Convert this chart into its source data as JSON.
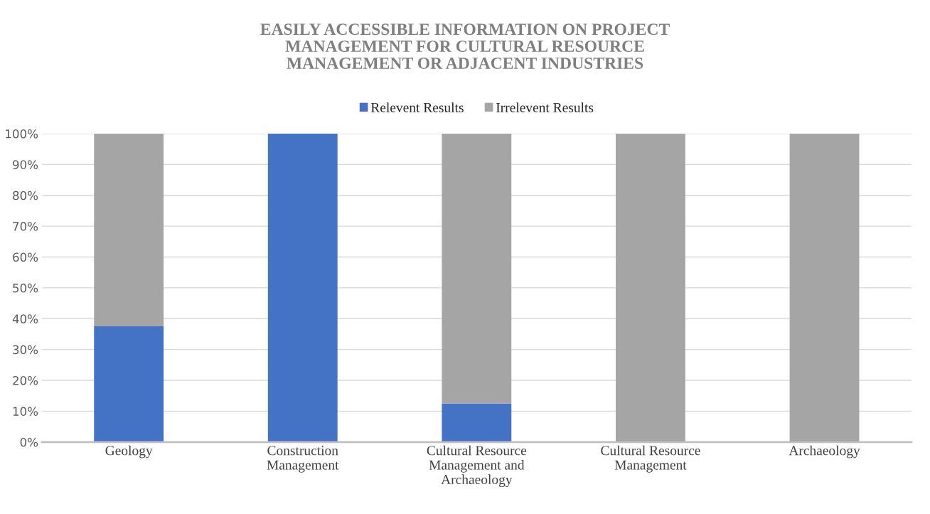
{
  "chart_data": {
    "type": "bar",
    "title": "EASILY ACCESSIBLE INFORMATION ON PROJECT MANAGEMENT FOR CULTURAL RESOURCE MANAGEMENT OR ADJACENT INDUSTRIES",
    "categories": [
      "Geology",
      "Construction Management",
      "Cultural Resource Management and Archaeology",
      "Cultural Resource Management",
      "Archaeology"
    ],
    "stacked": true,
    "series": [
      {
        "name": "Relevent Results",
        "color": "#4472c4",
        "values": [
          37.5,
          100,
          12.5,
          0,
          0
        ]
      },
      {
        "name": "Irrelevent Results",
        "color": "#a5a5a5",
        "values": [
          62.5,
          0,
          87.5,
          100,
          100
        ]
      }
    ],
    "ylim": [
      0,
      100
    ],
    "yticks": [
      {
        "value": 0,
        "label": "0%"
      },
      {
        "value": 10,
        "label": "10%"
      },
      {
        "value": 20,
        "label": "20%"
      },
      {
        "value": 30,
        "label": "30%"
      },
      {
        "value": 40,
        "label": "40%"
      },
      {
        "value": 50,
        "label": "50%"
      },
      {
        "value": 60,
        "label": "60%"
      },
      {
        "value": 70,
        "label": "70%"
      },
      {
        "value": 80,
        "label": "80%"
      },
      {
        "value": 90,
        "label": "90%"
      },
      {
        "value": 100,
        "label": "100%"
      }
    ],
    "grid": "y",
    "legend": "top"
  }
}
